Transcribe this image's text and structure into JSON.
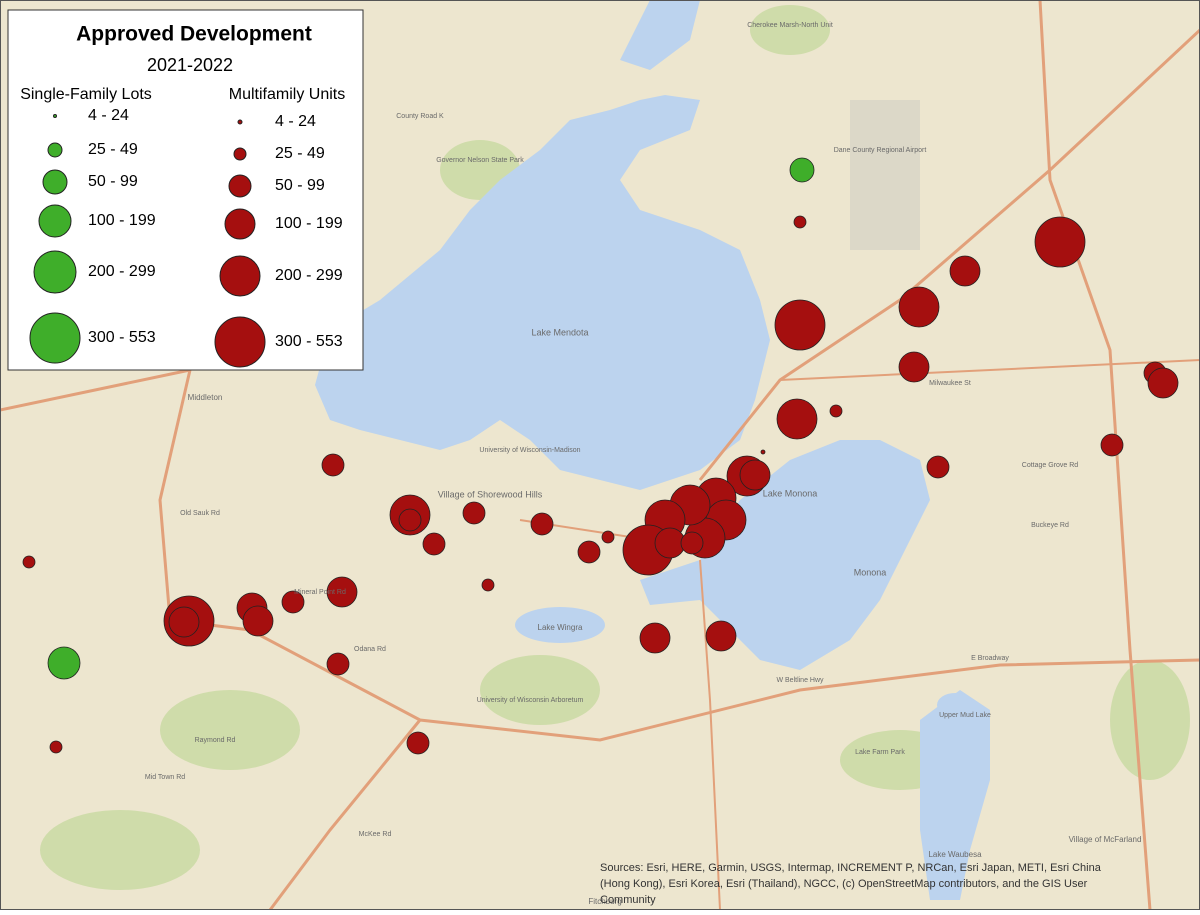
{
  "legend": {
    "title": "Approved Development",
    "subtitle": "2021-2022",
    "single_family": {
      "heading": "Single-Family Lots",
      "classes": [
        "4 - 24",
        "25 - 49",
        "50 - 99",
        "100 - 199",
        "200 - 299",
        "300 - 553"
      ]
    },
    "multifamily": {
      "heading": "Multifamily Units",
      "classes": [
        "4 - 24",
        "25 - 49",
        "50 - 99",
        "100 - 199",
        "200 - 299",
        "300 - 553"
      ]
    }
  },
  "attribution": [
    "Sources: Esri, HERE, Garmin, USGS, Intermap, INCREMENT P, NRCan, Esri Japan, METI, Esri China",
    "(Hong Kong), Esri Korea, Esri (Thailand), NGCC, (c) OpenStreetMap contributors, and the GIS User",
    "Community"
  ],
  "map_labels": [
    "Lake Mendota",
    "Lake Monona",
    "Lake Wingra",
    "Middleton",
    "Village of Shorewood Hills",
    "Monona",
    "Upper Mud Lake",
    "Lake Waubesa",
    "Village of McFarland",
    "Fitchburg",
    "University of Wisconsin-Madison",
    "Dane County Regional Airport",
    "Governor Nelson State Park",
    "Cherokee Marsh-North Unit",
    "County Road K",
    "Mineral Point Rd",
    "Old Sauk Rd",
    "Odana Rd",
    "Raymond Rd",
    "McKee Rd",
    "Mid Town Rd",
    "E Broadway",
    "W Beltline Hwy",
    "Cottage Grove Rd",
    "Milwaukee St",
    "Buckeye Rd",
    "Lake Farm Park",
    "University of Wisconsin Arboretum"
  ]
}
